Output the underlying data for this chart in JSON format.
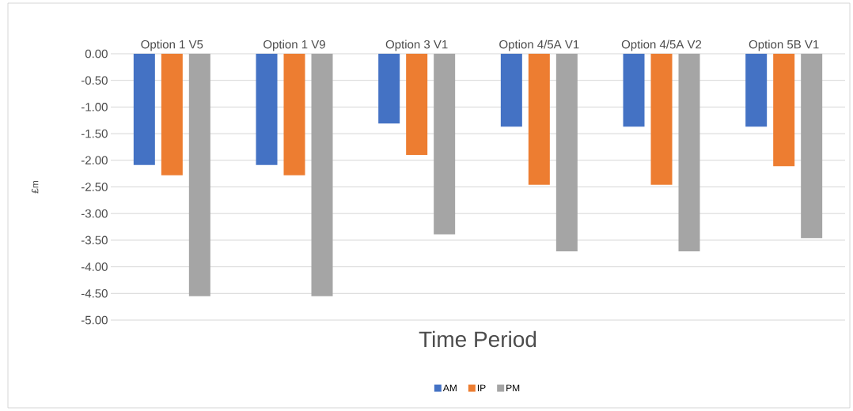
{
  "chart_data": {
    "type": "bar",
    "xlabel": "Time Period",
    "ylabel": "£m",
    "categories": [
      "Option 1 V5",
      "Option 1 V9",
      "Option 3 V1",
      "Option 4/5A V1",
      "Option 4/5A V2",
      "Option 5B V1"
    ],
    "series": [
      {
        "name": "AM",
        "color": "#4472c4",
        "values": [
          -2.09,
          -2.09,
          -1.31,
          -1.37,
          -1.37,
          -1.37
        ]
      },
      {
        "name": "IP",
        "color": "#ed7d31",
        "values": [
          -2.28,
          -2.28,
          -1.9,
          -2.46,
          -2.46,
          -2.11
        ]
      },
      {
        "name": "PM",
        "color": "#a5a5a5",
        "values": [
          -4.55,
          -4.55,
          -3.39,
          -3.71,
          -3.71,
          -3.46
        ]
      }
    ],
    "ylim": [
      -5,
      0
    ],
    "yticks": [
      {
        "value": 0,
        "label": "0.00"
      },
      {
        "value": -0.5,
        "label": "-0.50"
      },
      {
        "value": -1,
        "label": "-1.00"
      },
      {
        "value": -1.5,
        "label": "-1.50"
      },
      {
        "value": -2,
        "label": "-2.00"
      },
      {
        "value": -2.5,
        "label": "-2.50"
      },
      {
        "value": -3,
        "label": "-3.00"
      },
      {
        "value": -3.5,
        "label": "-3.50"
      },
      {
        "value": -4,
        "label": "-4.00"
      },
      {
        "value": -4.5,
        "label": "-4.50"
      },
      {
        "value": -5,
        "label": "-5.00"
      }
    ],
    "grid": "y",
    "legend": "bottom"
  }
}
